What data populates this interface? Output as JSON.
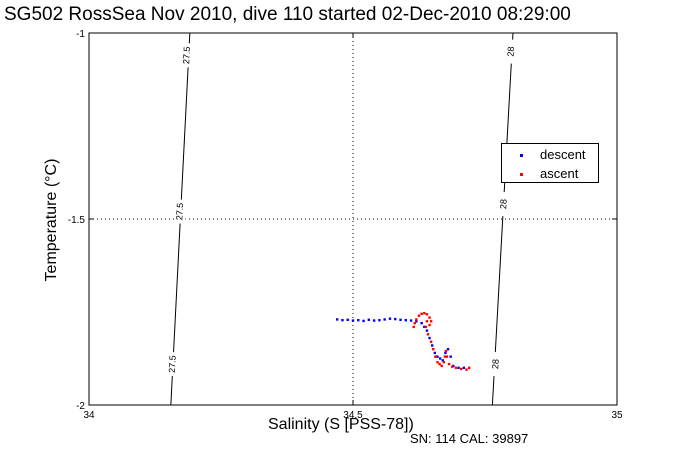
{
  "title": "SG502 RossSea Nov 2010, dive 110 started 02-Dec-2010 08:29:00",
  "footer": "SN: 114  CAL: 39897",
  "chart_data": {
    "type": "scatter",
    "xlabel": "Salinity (S [PSS-78])",
    "ylabel": "Temperature (°C)",
    "xlim": [
      34,
      35
    ],
    "ylim": [
      -2,
      -1
    ],
    "xticks": [
      34,
      34.5,
      35
    ],
    "xtick_labels": [
      "34",
      "34.5",
      "35"
    ],
    "yticks": [
      -2,
      -1.5,
      -1
    ],
    "ytick_labels": [
      "-2",
      "-1.5",
      "-1"
    ],
    "grid": true,
    "legend_position": "right",
    "density_contours": [
      {
        "label": "27.5",
        "points": [
          [
            34.191,
            -1.0
          ],
          [
            34.155,
            -2.0
          ]
        ],
        "label_positions": [
          [
            34.186,
            -1.06
          ],
          [
            34.173,
            -1.48
          ],
          [
            34.159,
            -1.89
          ]
        ]
      },
      {
        "label": "28",
        "points": [
          [
            34.803,
            -1.0
          ],
          [
            34.764,
            -2.0
          ]
        ],
        "label_positions": [
          [
            34.8,
            -1.05
          ],
          [
            34.786,
            -1.46
          ],
          [
            34.771,
            -1.89
          ]
        ]
      }
    ],
    "series": [
      {
        "name": "descent",
        "color": "#0000ff",
        "points": [
          [
            34.47,
            -1.77
          ],
          [
            34.48,
            -1.772
          ],
          [
            34.49,
            -1.771
          ],
          [
            34.5,
            -1.773
          ],
          [
            34.51,
            -1.772
          ],
          [
            34.52,
            -1.774
          ],
          [
            34.53,
            -1.771
          ],
          [
            34.54,
            -1.773
          ],
          [
            34.55,
            -1.772
          ],
          [
            34.56,
            -1.77
          ],
          [
            34.57,
            -1.768
          ],
          [
            34.58,
            -1.769
          ],
          [
            34.59,
            -1.771
          ],
          [
            34.6,
            -1.772
          ],
          [
            34.61,
            -1.773
          ],
          [
            34.62,
            -1.775
          ],
          [
            34.63,
            -1.78
          ],
          [
            34.635,
            -1.79
          ],
          [
            34.64,
            -1.8
          ],
          [
            34.645,
            -1.82
          ],
          [
            34.65,
            -1.84
          ],
          [
            34.655,
            -1.86
          ],
          [
            34.66,
            -1.87
          ],
          [
            34.665,
            -1.875
          ],
          [
            34.67,
            -1.88
          ],
          [
            34.675,
            -1.86
          ],
          [
            34.68,
            -1.85
          ],
          [
            34.685,
            -1.87
          ],
          [
            34.69,
            -1.895
          ],
          [
            34.7,
            -1.9
          ],
          [
            34.71,
            -1.9
          ]
        ]
      },
      {
        "name": "ascent",
        "color": "#ff0000",
        "points": [
          [
            34.615,
            -1.79
          ],
          [
            34.617,
            -1.78
          ],
          [
            34.62,
            -1.77
          ],
          [
            34.625,
            -1.76
          ],
          [
            34.63,
            -1.755
          ],
          [
            34.635,
            -1.753
          ],
          [
            34.64,
            -1.756
          ],
          [
            34.645,
            -1.765
          ],
          [
            34.648,
            -1.775
          ],
          [
            34.645,
            -1.785
          ],
          [
            34.64,
            -1.775
          ],
          [
            34.638,
            -1.79
          ],
          [
            34.642,
            -1.81
          ],
          [
            34.648,
            -1.83
          ],
          [
            34.652,
            -1.85
          ],
          [
            34.656,
            -1.87
          ],
          [
            34.66,
            -1.885
          ],
          [
            34.664,
            -1.89
          ],
          [
            34.668,
            -1.895
          ],
          [
            34.672,
            -1.885
          ],
          [
            34.674,
            -1.87
          ],
          [
            34.676,
            -1.855
          ],
          [
            34.678,
            -1.87
          ],
          [
            34.682,
            -1.89
          ],
          [
            34.688,
            -1.897
          ],
          [
            34.695,
            -1.9
          ],
          [
            34.705,
            -1.903
          ],
          [
            34.715,
            -1.905
          ],
          [
            34.72,
            -1.9
          ]
        ]
      }
    ]
  }
}
